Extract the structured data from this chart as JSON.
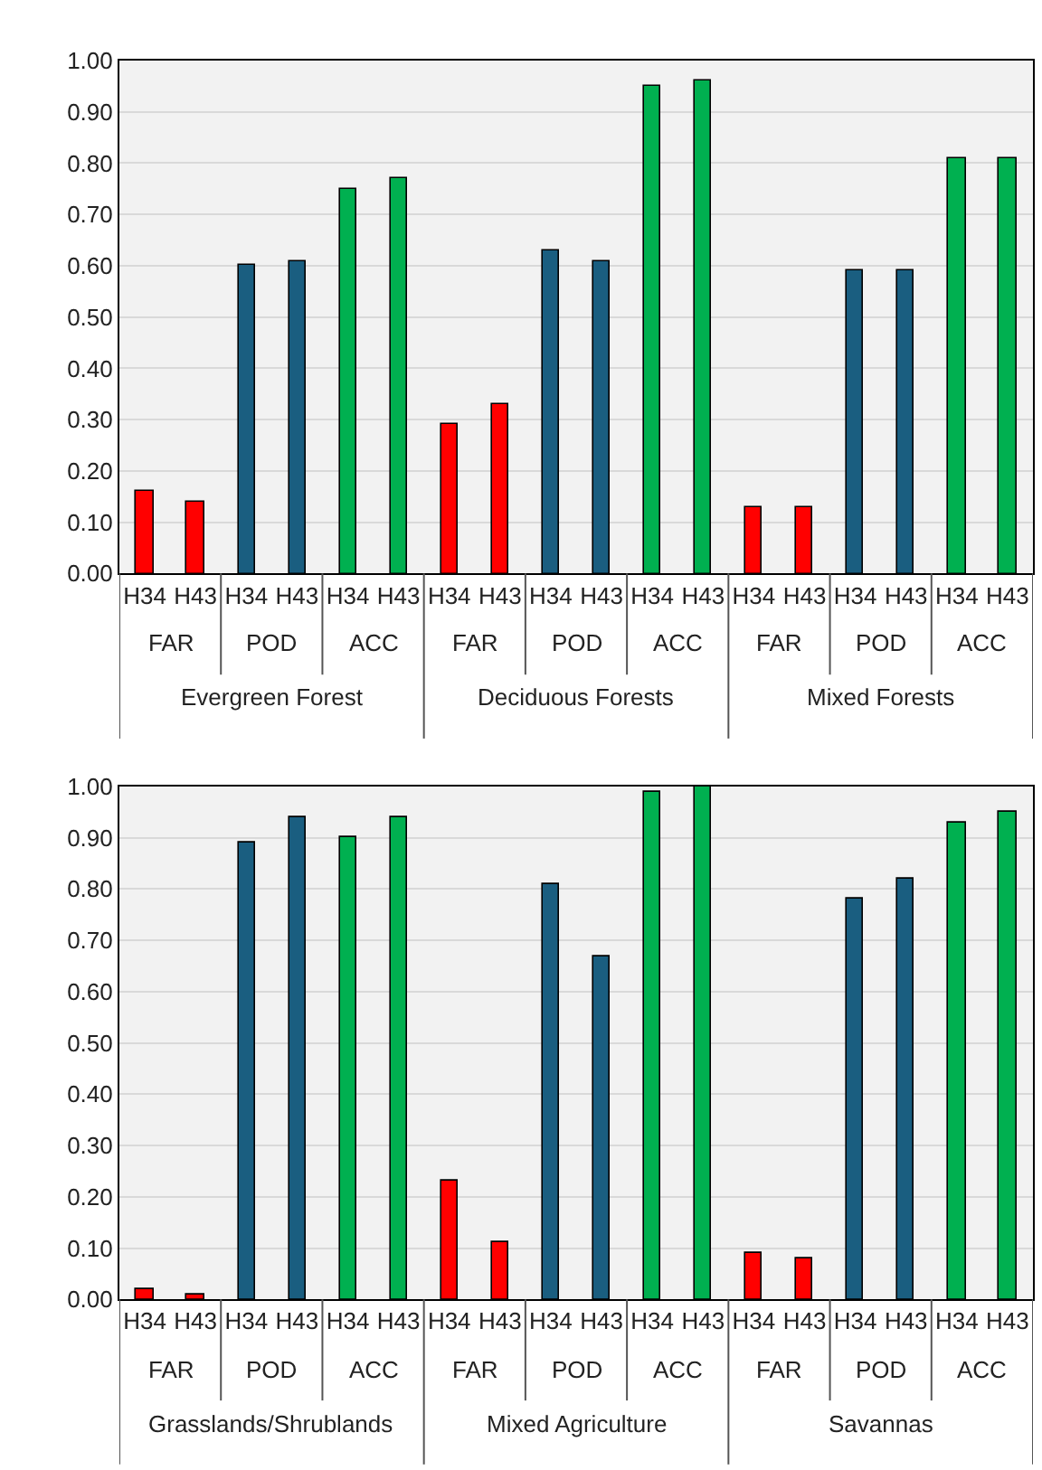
{
  "chart_data": [
    {
      "type": "bar",
      "categories": [
        "H34",
        "H43",
        "H34",
        "H43",
        "H34",
        "H43",
        "H34",
        "H43",
        "H34",
        "H43",
        "H34",
        "H43",
        "H34",
        "H43",
        "H34",
        "H43",
        "H34",
        "H43"
      ],
      "values": [
        0.16,
        0.14,
        0.6,
        0.61,
        0.75,
        0.77,
        0.29,
        0.33,
        0.63,
        0.61,
        0.95,
        0.96,
        0.13,
        0.13,
        0.59,
        0.59,
        0.81,
        0.81
      ],
      "colors": [
        "#ff0000",
        "#ff0000",
        "#1a5e80",
        "#1a5e80",
        "#00b050",
        "#00b050",
        "#ff0000",
        "#ff0000",
        "#1a5e80",
        "#1a5e80",
        "#00b050",
        "#00b050",
        "#ff0000",
        "#ff0000",
        "#1a5e80",
        "#1a5e80",
        "#00b050",
        "#00b050"
      ],
      "ylim": [
        0,
        1
      ],
      "yticks": [
        {
          "value": 0,
          "label": "0.00"
        },
        {
          "value": 0.1,
          "label": "0.10"
        },
        {
          "value": 0.2,
          "label": "0.20"
        },
        {
          "value": 0.3,
          "label": "0.30"
        },
        {
          "value": 0.4,
          "label": "0.40"
        },
        {
          "value": 0.5,
          "label": "0.50"
        },
        {
          "value": 0.6,
          "label": "0.60"
        },
        {
          "value": 0.7,
          "label": "0.70"
        },
        {
          "value": 0.8,
          "label": "0.80"
        },
        {
          "value": 0.9,
          "label": "0.90"
        },
        {
          "value": 1,
          "label": "1.00"
        }
      ],
      "grid": "y",
      "legend": false,
      "annotations": [
        "FAR",
        "POD",
        "ACC",
        "FAR",
        "POD",
        "ACC",
        "FAR",
        "POD",
        "ACC",
        "Evergreen Forest",
        "Deciduous Forests",
        "Mixed Forests"
      ]
    },
    {
      "type": "bar",
      "categories": [
        "H34",
        "H43",
        "H34",
        "H43",
        "H34",
        "H43",
        "H34",
        "H43",
        "H34",
        "H43",
        "H34",
        "H43",
        "H34",
        "H43",
        "H34",
        "H43",
        "H34",
        "H43"
      ],
      "values": [
        0.02,
        0.01,
        0.89,
        0.94,
        0.9,
        0.94,
        0.23,
        0.11,
        0.81,
        0.67,
        0.99,
        1.0,
        0.09,
        0.08,
        0.78,
        0.82,
        0.93,
        0.95
      ],
      "colors": [
        "#ff0000",
        "#ff0000",
        "#1a5e80",
        "#1a5e80",
        "#00b050",
        "#00b050",
        "#ff0000",
        "#ff0000",
        "#1a5e80",
        "#1a5e80",
        "#00b050",
        "#00b050",
        "#ff0000",
        "#ff0000",
        "#1a5e80",
        "#1a5e80",
        "#00b050",
        "#00b050"
      ],
      "ylim": [
        0,
        1
      ],
      "yticks": [
        {
          "value": 0,
          "label": "0.00"
        },
        {
          "value": 0.1,
          "label": "0.10"
        },
        {
          "value": 0.2,
          "label": "0.20"
        },
        {
          "value": 0.3,
          "label": "0.30"
        },
        {
          "value": 0.4,
          "label": "0.40"
        },
        {
          "value": 0.5,
          "label": "0.50"
        },
        {
          "value": 0.6,
          "label": "0.60"
        },
        {
          "value": 0.7,
          "label": "0.70"
        },
        {
          "value": 0.8,
          "label": "0.80"
        },
        {
          "value": 0.9,
          "label": "0.90"
        },
        {
          "value": 1,
          "label": "1.00"
        }
      ],
      "grid": "y",
      "legend": false,
      "annotations": [
        "FAR",
        "POD",
        "ACC",
        "FAR",
        "POD",
        "ACC",
        "FAR",
        "POD",
        "ACC",
        "Grasslands/Shrublands",
        "Mixed Agriculture",
        "Savannas"
      ]
    }
  ]
}
